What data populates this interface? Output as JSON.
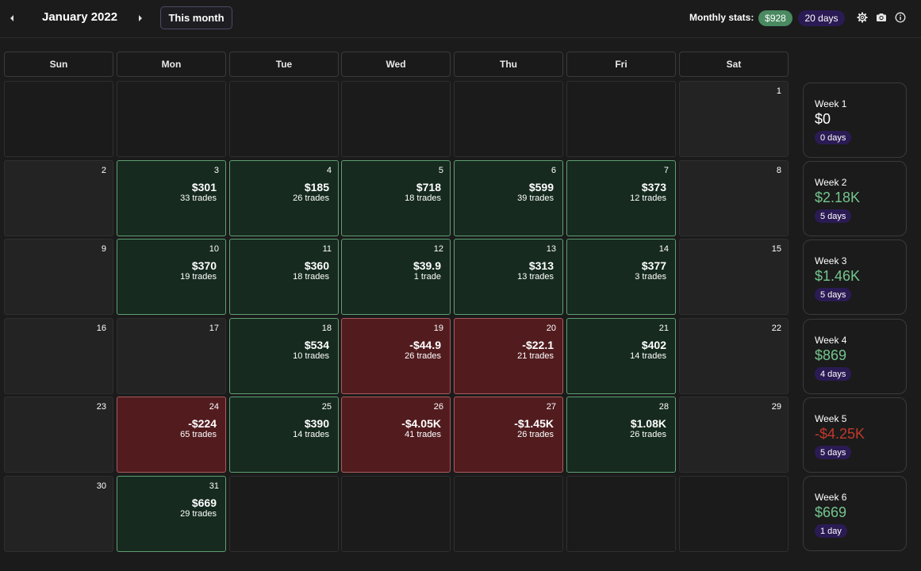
{
  "header": {
    "month_title": "January 2022",
    "this_month_label": "This month",
    "stats_label": "Monthly stats:",
    "stats_amount": "$928",
    "stats_days": "20 days"
  },
  "icons": {
    "prev": "caret-left-icon",
    "next": "caret-right-icon",
    "settings": "gear-icon",
    "screenshot": "camera-icon",
    "info": "info-icon"
  },
  "colors": {
    "win_cell": "#162a1f",
    "loss_cell": "#521c1f",
    "positive_text": "#74c58e",
    "negative_text": "#c0392b",
    "stats_amount_bg": "#4a8a61",
    "days_badge_bg": "#2b1b54"
  },
  "weekdays": [
    "Sun",
    "Mon",
    "Tue",
    "Wed",
    "Thu",
    "Fri",
    "Sat"
  ],
  "weeks": [
    {
      "days": [
        {
          "type": "empty"
        },
        {
          "type": "empty"
        },
        {
          "type": "empty"
        },
        {
          "type": "empty"
        },
        {
          "type": "empty"
        },
        {
          "type": "empty"
        },
        {
          "num": "1",
          "type": "weekend"
        }
      ],
      "summary": {
        "label": "Week 1",
        "pnl": "$0",
        "sign": "zero",
        "days": "0 days"
      }
    },
    {
      "days": [
        {
          "num": "2",
          "type": "weekend"
        },
        {
          "num": "3",
          "type": "win",
          "pnl": "$301",
          "trades": "33 trades"
        },
        {
          "num": "4",
          "type": "win",
          "pnl": "$185",
          "trades": "26 trades"
        },
        {
          "num": "5",
          "type": "win",
          "pnl": "$718",
          "trades": "18 trades"
        },
        {
          "num": "6",
          "type": "win",
          "pnl": "$599",
          "trades": "39 trades"
        },
        {
          "num": "7",
          "type": "win",
          "pnl": "$373",
          "trades": "12 trades"
        },
        {
          "num": "8",
          "type": "weekend"
        }
      ],
      "summary": {
        "label": "Week 2",
        "pnl": "$2.18K",
        "sign": "pos",
        "days": "5 days"
      }
    },
    {
      "days": [
        {
          "num": "9",
          "type": "weekend"
        },
        {
          "num": "10",
          "type": "win",
          "pnl": "$370",
          "trades": "19 trades"
        },
        {
          "num": "11",
          "type": "win",
          "pnl": "$360",
          "trades": "18 trades"
        },
        {
          "num": "12",
          "type": "win",
          "pnl": "$39.9",
          "trades": "1 trade"
        },
        {
          "num": "13",
          "type": "win",
          "pnl": "$313",
          "trades": "13 trades"
        },
        {
          "num": "14",
          "type": "win",
          "pnl": "$377",
          "trades": "3 trades"
        },
        {
          "num": "15",
          "type": "weekend"
        }
      ],
      "summary": {
        "label": "Week 3",
        "pnl": "$1.46K",
        "sign": "pos",
        "days": "5 days"
      }
    },
    {
      "days": [
        {
          "num": "16",
          "type": "weekend"
        },
        {
          "num": "17",
          "type": "weekend"
        },
        {
          "num": "18",
          "type": "win",
          "pnl": "$534",
          "trades": "10 trades"
        },
        {
          "num": "19",
          "type": "loss",
          "pnl": "-$44.9",
          "trades": "26 trades"
        },
        {
          "num": "20",
          "type": "loss",
          "pnl": "-$22.1",
          "trades": "21 trades"
        },
        {
          "num": "21",
          "type": "win",
          "pnl": "$402",
          "trades": "14 trades"
        },
        {
          "num": "22",
          "type": "weekend"
        }
      ],
      "summary": {
        "label": "Week 4",
        "pnl": "$869",
        "sign": "pos",
        "days": "4 days"
      }
    },
    {
      "days": [
        {
          "num": "23",
          "type": "weekend"
        },
        {
          "num": "24",
          "type": "loss",
          "pnl": "-$224",
          "trades": "65 trades"
        },
        {
          "num": "25",
          "type": "win",
          "pnl": "$390",
          "trades": "14 trades"
        },
        {
          "num": "26",
          "type": "loss",
          "pnl": "-$4.05K",
          "trades": "41 trades"
        },
        {
          "num": "27",
          "type": "loss",
          "pnl": "-$1.45K",
          "trades": "26 trades"
        },
        {
          "num": "28",
          "type": "win",
          "pnl": "$1.08K",
          "trades": "26 trades"
        },
        {
          "num": "29",
          "type": "weekend"
        }
      ],
      "summary": {
        "label": "Week 5",
        "pnl": "-$4.25K",
        "sign": "neg",
        "days": "5 days"
      }
    },
    {
      "days": [
        {
          "num": "30",
          "type": "weekend"
        },
        {
          "num": "31",
          "type": "win",
          "pnl": "$669",
          "trades": "29 trades"
        },
        {
          "type": "empty"
        },
        {
          "type": "empty"
        },
        {
          "type": "empty"
        },
        {
          "type": "empty"
        },
        {
          "type": "empty"
        }
      ],
      "summary": {
        "label": "Week 6",
        "pnl": "$669",
        "sign": "pos",
        "days": "1 day"
      }
    }
  ]
}
